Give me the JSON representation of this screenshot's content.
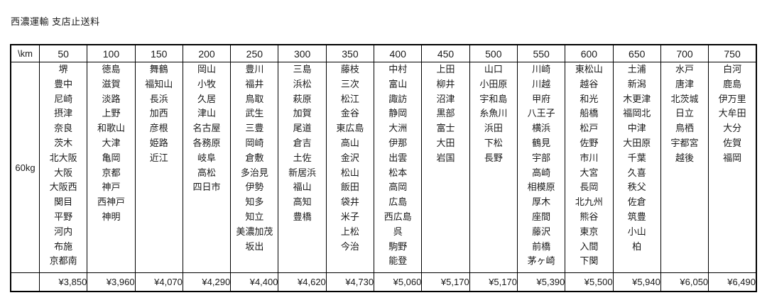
{
  "title": "西濃運輸 支店止送料",
  "table": {
    "corner_label": "\\km",
    "weight_label": "60kg",
    "columns": [
      {
        "distance": "50",
        "cities": [
          "堺",
          "豊中",
          "尼崎",
          "摂津",
          "奈良",
          "茨木",
          "北大阪",
          "大阪",
          "大阪西",
          "関目",
          "平野",
          "河内",
          "布施",
          "京都南"
        ],
        "price": "¥3,850"
      },
      {
        "distance": "100",
        "cities": [
          "徳島",
          "滋賀",
          "淡路",
          "上野",
          "和歌山",
          "大津",
          "亀岡",
          "京都",
          "神戸",
          "西神戸",
          "神明"
        ],
        "price": "¥3,960"
      },
      {
        "distance": "150",
        "cities": [
          "舞鶴",
          "福知山",
          "長浜",
          "加西",
          "彦根",
          "姫路",
          "近江"
        ],
        "price": "¥4,070"
      },
      {
        "distance": "200",
        "cities": [
          "岡山",
          "小牧",
          "久居",
          "津山",
          "名古屋",
          "各務原",
          "岐阜",
          "高松",
          "四日市"
        ],
        "price": "¥4,290"
      },
      {
        "distance": "250",
        "cities": [
          "豊川",
          "福井",
          "鳥取",
          "武生",
          "三豊",
          "岡崎",
          "倉敷",
          "多治見",
          "伊勢",
          "知多",
          "知立",
          "美濃加茂",
          "坂出"
        ],
        "price": "¥4,400"
      },
      {
        "distance": "300",
        "cities": [
          "三島",
          "浜松",
          "萩原",
          "加賀",
          "尾道",
          "倉吉",
          "土佐",
          "新居浜",
          "福山",
          "高知",
          "豊橋"
        ],
        "price": "¥4,620"
      },
      {
        "distance": "350",
        "cities": [
          "藤枝",
          "三次",
          "松江",
          "金谷",
          "東広島",
          "高山",
          "金沢",
          "松山",
          "飯田",
          "袋井",
          "米子",
          "上松",
          "今治"
        ],
        "price": "¥4,730"
      },
      {
        "distance": "400",
        "cities": [
          "中村",
          "富山",
          "諏訪",
          "静岡",
          "大洲",
          "伊那",
          "出雲",
          "松本",
          "高岡",
          "広島",
          "西広島",
          "呉",
          "駒野",
          "能登"
        ],
        "price": "¥5,060"
      },
      {
        "distance": "450",
        "cities": [
          "上田",
          "柳井",
          "沼津",
          "黒部",
          "富士",
          "大田",
          "岩国"
        ],
        "price": "¥5,170"
      },
      {
        "distance": "500",
        "cities": [
          "山口",
          "小田原",
          "宇和島",
          "糸魚川",
          "浜田",
          "下松",
          "長野"
        ],
        "price": "¥5,170"
      },
      {
        "distance": "550",
        "cities": [
          "川崎",
          "川越",
          "甲府",
          "八王子",
          "横浜",
          "鶴見",
          "宇部",
          "高崎",
          "相模原",
          "厚木",
          "座間",
          "藤沢",
          "前橋",
          "茅ヶ崎"
        ],
        "price": "¥5,390"
      },
      {
        "distance": "600",
        "cities": [
          "東松山",
          "越谷",
          "和光",
          "船橋",
          "松戸",
          "佐野",
          "市川",
          "大宮",
          "長岡",
          "北九州",
          "熊谷",
          "東京",
          "入間",
          "下関"
        ],
        "price": "¥5,500"
      },
      {
        "distance": "650",
        "cities": [
          "土浦",
          "新潟",
          "木更津",
          "福岡北",
          "中津",
          "大田原",
          "千葉",
          "久喜",
          "秩父",
          "佐倉",
          "筑豊",
          "小山",
          "柏"
        ],
        "price": "¥5,940"
      },
      {
        "distance": "700",
        "cities": [
          "水戸",
          "唐津",
          "北茨城",
          "日立",
          "鳥栖",
          "宇都宮",
          "越後"
        ],
        "price": "¥6,050"
      },
      {
        "distance": "750",
        "cities": [
          "白河",
          "鹿島",
          "伊万里",
          "大牟田",
          "大分",
          "佐賀",
          "福岡"
        ],
        "price": "¥6,490"
      }
    ]
  }
}
